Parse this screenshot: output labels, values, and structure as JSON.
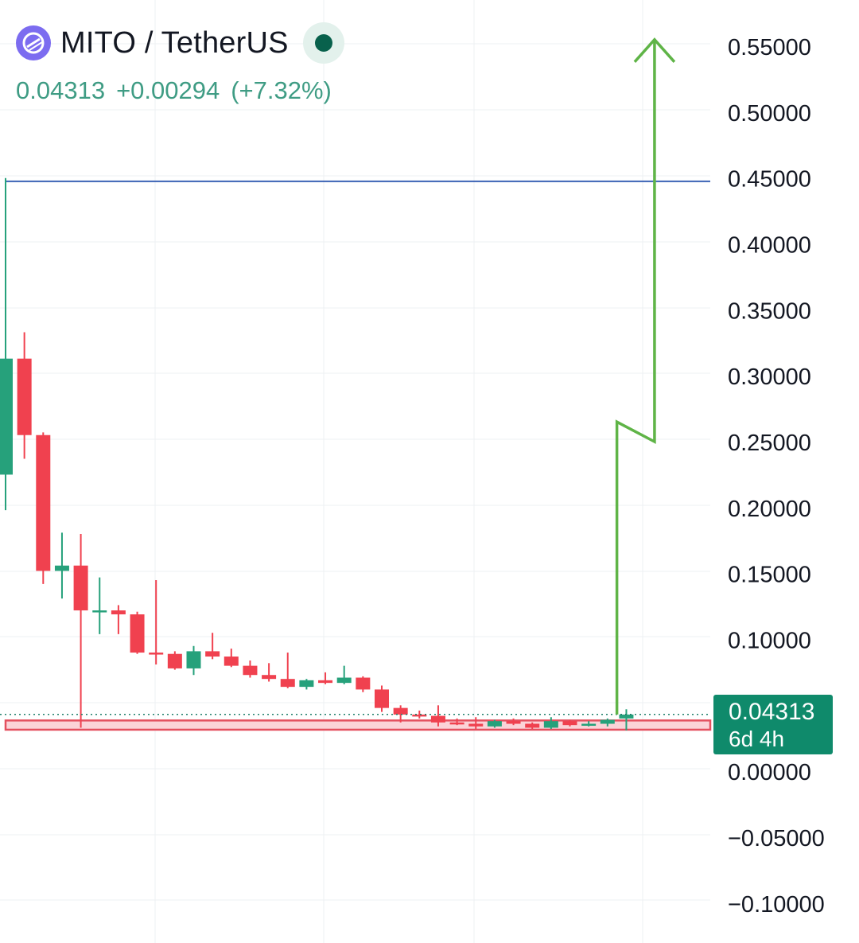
{
  "header": {
    "pair": "MITO / TetherUS",
    "last_price": "0.04313",
    "change": "+0.00294",
    "change_pct": "(+7.32%)",
    "status": "market-open-dot"
  },
  "badge": {
    "price": "0.04313",
    "countdown": "6d 4h"
  },
  "colors": {
    "up": "#26a17b",
    "down": "#f0414f",
    "resistance_line": "#3a62b4",
    "arrow": "#5fb447",
    "support_fill": "#fbd3d8",
    "support_border": "#e4505f",
    "grid": "#eef0f3",
    "axis_text": "#131722",
    "current_price_line": "#1f7f6a"
  },
  "chart_data": {
    "type": "candlestick",
    "yaxis": {
      "ticks": [
        "0.55000",
        "0.50000",
        "0.45000",
        "0.40000",
        "0.35000",
        "0.30000",
        "0.25000",
        "0.20000",
        "0.15000",
        "0.10000",
        "0.00000",
        "−0.05000",
        "−0.10000"
      ],
      "tick_values": [
        0.55,
        0.5,
        0.45,
        0.4,
        0.35,
        0.3,
        0.25,
        0.2,
        0.15,
        0.1,
        0.0,
        -0.05,
        -0.1
      ],
      "range": [
        -0.125,
        0.5625
      ]
    },
    "candles": [
      {
        "o": 0.225,
        "h": 0.45,
        "l": 0.198,
        "c": 0.313
      },
      {
        "o": 0.313,
        "h": 0.333,
        "l": 0.237,
        "c": 0.255
      },
      {
        "o": 0.255,
        "h": 0.257,
        "l": 0.142,
        "c": 0.152
      },
      {
        "o": 0.152,
        "h": 0.181,
        "l": 0.131,
        "c": 0.156
      },
      {
        "o": 0.156,
        "h": 0.18,
        "l": 0.033,
        "c": 0.122
      },
      {
        "o": 0.122,
        "h": 0.147,
        "l": 0.104,
        "c": 0.122
      },
      {
        "o": 0.122,
        "h": 0.126,
        "l": 0.104,
        "c": 0.119
      },
      {
        "o": 0.119,
        "h": 0.121,
        "l": 0.089,
        "c": 0.09
      },
      {
        "o": 0.09,
        "h": 0.145,
        "l": 0.081,
        "c": 0.089
      },
      {
        "o": 0.089,
        "h": 0.091,
        "l": 0.077,
        "c": 0.078
      },
      {
        "o": 0.078,
        "h": 0.095,
        "l": 0.073,
        "c": 0.091
      },
      {
        "o": 0.091,
        "h": 0.105,
        "l": 0.085,
        "c": 0.087
      },
      {
        "o": 0.087,
        "h": 0.093,
        "l": 0.079,
        "c": 0.08
      },
      {
        "o": 0.08,
        "h": 0.084,
        "l": 0.071,
        "c": 0.073
      },
      {
        "o": 0.073,
        "h": 0.082,
        "l": 0.068,
        "c": 0.07
      },
      {
        "o": 0.07,
        "h": 0.09,
        "l": 0.063,
        "c": 0.064
      },
      {
        "o": 0.064,
        "h": 0.07,
        "l": 0.062,
        "c": 0.069
      },
      {
        "o": 0.069,
        "h": 0.075,
        "l": 0.066,
        "c": 0.067
      },
      {
        "o": 0.067,
        "h": 0.08,
        "l": 0.066,
        "c": 0.071
      },
      {
        "o": 0.071,
        "h": 0.072,
        "l": 0.06,
        "c": 0.062
      },
      {
        "o": 0.062,
        "h": 0.065,
        "l": 0.045,
        "c": 0.048
      },
      {
        "o": 0.048,
        "h": 0.05,
        "l": 0.037,
        "c": 0.043
      },
      {
        "o": 0.043,
        "h": 0.046,
        "l": 0.04,
        "c": 0.042
      },
      {
        "o": 0.042,
        "h": 0.05,
        "l": 0.034,
        "c": 0.037
      },
      {
        "o": 0.037,
        "h": 0.04,
        "l": 0.035,
        "c": 0.036
      },
      {
        "o": 0.036,
        "h": 0.041,
        "l": 0.032,
        "c": 0.034
      },
      {
        "o": 0.034,
        "h": 0.039,
        "l": 0.033,
        "c": 0.038
      },
      {
        "o": 0.038,
        "h": 0.04,
        "l": 0.035,
        "c": 0.036
      },
      {
        "o": 0.036,
        "h": 0.037,
        "l": 0.032,
        "c": 0.033
      },
      {
        "o": 0.033,
        "h": 0.041,
        "l": 0.032,
        "c": 0.038
      },
      {
        "o": 0.038,
        "h": 0.039,
        "l": 0.034,
        "c": 0.035
      },
      {
        "o": 0.035,
        "h": 0.038,
        "l": 0.034,
        "c": 0.036
      },
      {
        "o": 0.036,
        "h": 0.04,
        "l": 0.034,
        "c": 0.039
      },
      {
        "o": 0.04,
        "h": 0.047,
        "l": 0.031,
        "c": 0.043
      }
    ],
    "resistance_level": 0.4475,
    "support_zone": [
      0.0315,
      0.0385
    ],
    "current_price": 0.04313,
    "projection_arrow": [
      {
        "i": 32.5,
        "v": 0.043
      },
      {
        "i": 32.5,
        "v": 0.265
      },
      {
        "i": 34.5,
        "v": 0.25
      },
      {
        "i": 34.5,
        "v": 0.555
      }
    ],
    "grid": true
  }
}
